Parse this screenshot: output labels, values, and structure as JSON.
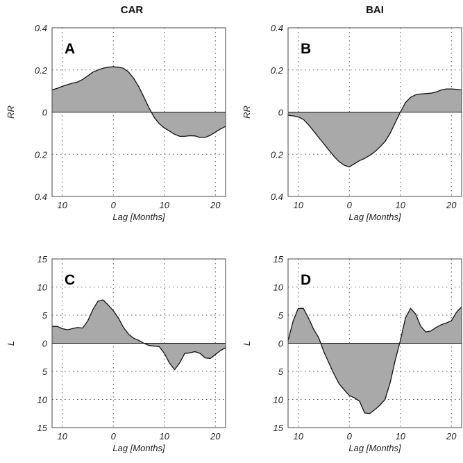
{
  "column_titles": [
    "CAR",
    "BAI"
  ],
  "colors": {
    "fill": "#a9a9a9",
    "line": "#111111",
    "grid": "#555555"
  },
  "chart_data": [
    {
      "id": "A",
      "type": "area",
      "panel_label": "A",
      "ylabel": "RR",
      "xlabel": "Lag [Months]",
      "xlim": [
        -12,
        22
      ],
      "ylim": [
        -0.4,
        0.4
      ],
      "xticks": [
        -10,
        0,
        10,
        20
      ],
      "xtick_labels": [
        "10",
        "0",
        "10",
        "20"
      ],
      "yticks": [
        0.4,
        0.2,
        0,
        -0.2,
        -0.4
      ],
      "ytick_labels": [
        "0.4",
        "0.2",
        "0",
        "0.2",
        "0.4"
      ],
      "grid": true,
      "x": [
        -12,
        -11,
        -10,
        -9,
        -8,
        -7,
        -6,
        -5,
        -4,
        -3,
        -2,
        -1,
        0,
        1,
        2,
        3,
        4,
        5,
        6,
        7,
        8,
        9,
        10,
        11,
        12,
        13,
        14,
        15,
        16,
        17,
        18,
        19,
        20,
        21,
        22
      ],
      "y": [
        0.105,
        0.113,
        0.122,
        0.13,
        0.137,
        0.143,
        0.155,
        0.172,
        0.19,
        0.2,
        0.208,
        0.213,
        0.215,
        0.213,
        0.208,
        0.19,
        0.16,
        0.12,
        0.07,
        0.02,
        -0.025,
        -0.055,
        -0.075,
        -0.09,
        -0.105,
        -0.115,
        -0.115,
        -0.112,
        -0.113,
        -0.12,
        -0.12,
        -0.11,
        -0.095,
        -0.08,
        -0.068
      ]
    },
    {
      "id": "B",
      "type": "area",
      "panel_label": "B",
      "ylabel": "RR",
      "xlabel": "Lag [Months]",
      "xlim": [
        -12,
        22
      ],
      "ylim": [
        -0.4,
        0.4
      ],
      "xticks": [
        -10,
        0,
        10,
        20
      ],
      "xtick_labels": [
        "10",
        "0",
        "10",
        "20"
      ],
      "yticks": [
        0.4,
        0.2,
        0,
        -0.2,
        -0.4
      ],
      "ytick_labels": [
        "0.4",
        "0.2",
        "0",
        "0.2",
        "0.4"
      ],
      "grid": true,
      "x": [
        -12,
        -11,
        -10,
        -9,
        -8,
        -7,
        -6,
        -5,
        -4,
        -3,
        -2,
        -1,
        0,
        1,
        2,
        3,
        4,
        5,
        6,
        7,
        8,
        9,
        10,
        11,
        12,
        13,
        14,
        15,
        16,
        17,
        18,
        19,
        20,
        21,
        22
      ],
      "y": [
        -0.015,
        -0.018,
        -0.023,
        -0.035,
        -0.06,
        -0.09,
        -0.12,
        -0.15,
        -0.18,
        -0.21,
        -0.235,
        -0.252,
        -0.26,
        -0.245,
        -0.23,
        -0.22,
        -0.205,
        -0.188,
        -0.165,
        -0.14,
        -0.1,
        -0.05,
        0.0,
        0.045,
        0.07,
        0.082,
        0.086,
        0.088,
        0.09,
        0.095,
        0.105,
        0.11,
        0.11,
        0.108,
        0.105
      ]
    },
    {
      "id": "C",
      "type": "area",
      "panel_label": "C",
      "ylabel": "L",
      "xlabel": "Lag [Months]",
      "xlim": [
        -12,
        22
      ],
      "ylim": [
        -15,
        15
      ],
      "xticks": [
        -10,
        0,
        10,
        20
      ],
      "xtick_labels": [
        "10",
        "0",
        "10",
        "20"
      ],
      "yticks": [
        15,
        10,
        5,
        0,
        -5,
        -10,
        -15
      ],
      "ytick_labels": [
        "15",
        "10",
        "5",
        "0",
        "5",
        "10",
        "15"
      ],
      "grid": true,
      "x": [
        -12,
        -11,
        -10,
        -9,
        -8,
        -7,
        -6,
        -5,
        -4,
        -3,
        -2,
        -1,
        0,
        1,
        2,
        3,
        4,
        5,
        6,
        7,
        8,
        9,
        10,
        11,
        12,
        13,
        14,
        15,
        16,
        17,
        18,
        19,
        20,
        21,
        22
      ],
      "y": [
        3.0,
        3.0,
        2.6,
        2.4,
        2.6,
        2.8,
        2.7,
        4.0,
        6.0,
        7.5,
        7.7,
        6.8,
        5.8,
        4.5,
        2.8,
        1.6,
        0.9,
        0.5,
        0.0,
        -0.4,
        -0.5,
        -0.6,
        -1.8,
        -3.5,
        -4.7,
        -3.5,
        -1.8,
        -1.7,
        -1.5,
        -1.8,
        -2.6,
        -2.7,
        -2.0,
        -1.3,
        -0.8
      ]
    },
    {
      "id": "D",
      "type": "area",
      "panel_label": "D",
      "ylabel": "L",
      "xlabel": "Lag [Months]",
      "xlim": [
        -12,
        22
      ],
      "ylim": [
        -15,
        15
      ],
      "xticks": [
        -10,
        0,
        10,
        20
      ],
      "xtick_labels": [
        "10",
        "0",
        "10",
        "20"
      ],
      "yticks": [
        15,
        10,
        5,
        0,
        -5,
        -10,
        -15
      ],
      "ytick_labels": [
        "15",
        "10",
        "5",
        "0",
        "5",
        "10",
        "15"
      ],
      "grid": true,
      "x": [
        -12,
        -11,
        -10,
        -9,
        -8,
        -7,
        -6,
        -5,
        -4,
        -3,
        -2,
        -1,
        0,
        1,
        2,
        3,
        4,
        5,
        6,
        7,
        8,
        9,
        10,
        11,
        12,
        13,
        14,
        15,
        16,
        17,
        18,
        19,
        20,
        21,
        22
      ],
      "y": [
        0.5,
        4.0,
        6.2,
        6.2,
        4.5,
        2.5,
        1.0,
        -1.5,
        -3.5,
        -5.5,
        -7.2,
        -8.3,
        -9.3,
        -9.7,
        -10.3,
        -12.4,
        -12.5,
        -11.8,
        -11.0,
        -10.0,
        -7.0,
        -3.0,
        0.5,
        4.5,
        6.2,
        5.2,
        3.0,
        2.0,
        2.2,
        2.8,
        3.3,
        3.6,
        4.0,
        5.5,
        6.5
      ]
    }
  ]
}
